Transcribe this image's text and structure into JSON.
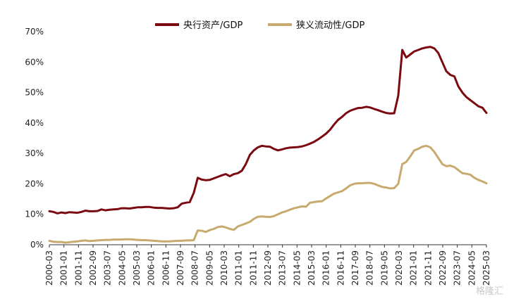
{
  "chart_data": {
    "type": "line",
    "title": "",
    "xlabel": "",
    "ylabel": "",
    "ylim": [
      0,
      70
    ],
    "yticks": [
      "0%",
      "10%",
      "20%",
      "30%",
      "40%",
      "50%",
      "60%",
      "70%"
    ],
    "xticks": [
      "2000-03",
      "2001-01",
      "2001-11",
      "2002-09",
      "2003-07",
      "2004-05",
      "2005-03",
      "2006-01",
      "2006-11",
      "2007-09",
      "2008-07",
      "2009-05",
      "2010-03",
      "2011-01",
      "2011-11",
      "2012-09",
      "2013-07",
      "2014-05",
      "2015-03",
      "2016-01",
      "2016-11",
      "2017-09",
      "2018-07",
      "2019-05",
      "2020-03",
      "2021-01",
      "2021-11",
      "2022-09",
      "2023-07",
      "2024-05",
      "2025-03"
    ],
    "grid": false,
    "legend_position": "top",
    "series": [
      {
        "name": "央行资产/GDP",
        "color": "#7a0a10",
        "points": [
          [
            0,
            11.0
          ],
          [
            1,
            10.8
          ],
          [
            2,
            10.3
          ],
          [
            3,
            10.6
          ],
          [
            4,
            10.4
          ],
          [
            5,
            10.7
          ],
          [
            6,
            10.6
          ],
          [
            7,
            10.5
          ],
          [
            8,
            10.8
          ],
          [
            9,
            11.2
          ],
          [
            10,
            11.0
          ],
          [
            11,
            11.0
          ],
          [
            12,
            11.1
          ],
          [
            13,
            11.6
          ],
          [
            14,
            11.3
          ],
          [
            15,
            11.5
          ],
          [
            16,
            11.6
          ],
          [
            17,
            11.7
          ],
          [
            18,
            12.0
          ],
          [
            19,
            12.0
          ],
          [
            20,
            11.9
          ],
          [
            21,
            12.1
          ],
          [
            22,
            12.3
          ],
          [
            23,
            12.3
          ],
          [
            24,
            12.4
          ],
          [
            25,
            12.4
          ],
          [
            26,
            12.2
          ],
          [
            27,
            12.1
          ],
          [
            28,
            12.1
          ],
          [
            29,
            12.0
          ],
          [
            30,
            11.9
          ],
          [
            31,
            12.0
          ],
          [
            32,
            12.3
          ],
          [
            33,
            13.5
          ],
          [
            34,
            13.8
          ],
          [
            35,
            14.0
          ],
          [
            36,
            17.0
          ],
          [
            37,
            22.0
          ],
          [
            38,
            21.4
          ],
          [
            39,
            21.2
          ],
          [
            40,
            21.3
          ],
          [
            41,
            21.8
          ],
          [
            42,
            22.3
          ],
          [
            43,
            22.8
          ],
          [
            44,
            23.2
          ],
          [
            45,
            22.5
          ],
          [
            46,
            23.2
          ],
          [
            47,
            23.5
          ],
          [
            48,
            24.3
          ],
          [
            49,
            26.5
          ],
          [
            50,
            29.5
          ],
          [
            51,
            31.0
          ],
          [
            52,
            32.0
          ],
          [
            53,
            32.5
          ],
          [
            54,
            32.3
          ],
          [
            55,
            32.2
          ],
          [
            56,
            31.5
          ],
          [
            57,
            31.0
          ],
          [
            58,
            31.3
          ],
          [
            59,
            31.7
          ],
          [
            60,
            31.9
          ],
          [
            61,
            32.0
          ],
          [
            62,
            32.1
          ],
          [
            63,
            32.3
          ],
          [
            64,
            32.7
          ],
          [
            65,
            33.2
          ],
          [
            66,
            33.8
          ],
          [
            67,
            34.6
          ],
          [
            68,
            35.5
          ],
          [
            69,
            36.5
          ],
          [
            70,
            37.8
          ],
          [
            71,
            39.5
          ],
          [
            72,
            41.0
          ],
          [
            73,
            42.0
          ],
          [
            74,
            43.2
          ],
          [
            75,
            44.0
          ],
          [
            76,
            44.5
          ],
          [
            77,
            44.9
          ],
          [
            78,
            45.0
          ],
          [
            79,
            45.3
          ],
          [
            80,
            45.1
          ],
          [
            81,
            44.6
          ],
          [
            82,
            44.2
          ],
          [
            83,
            43.7
          ],
          [
            84,
            43.3
          ],
          [
            85,
            43.1
          ],
          [
            86,
            43.2
          ],
          [
            87,
            49.0
          ],
          [
            88,
            64.0
          ],
          [
            89,
            61.5
          ],
          [
            90,
            62.5
          ],
          [
            91,
            63.5
          ],
          [
            92,
            64.0
          ],
          [
            93,
            64.5
          ],
          [
            94,
            64.8
          ],
          [
            95,
            65.0
          ],
          [
            96,
            64.5
          ],
          [
            97,
            63.0
          ],
          [
            98,
            60.0
          ],
          [
            99,
            57.0
          ],
          [
            100,
            55.8
          ],
          [
            101,
            55.3
          ],
          [
            102,
            52.0
          ],
          [
            103,
            50.0
          ],
          [
            104,
            48.5
          ],
          [
            105,
            47.5
          ],
          [
            106,
            46.5
          ],
          [
            107,
            45.5
          ],
          [
            108,
            45.0
          ],
          [
            109,
            43.3
          ]
        ]
      },
      {
        "name": "狭义流动性/GDP",
        "color": "#c8aa6e",
        "points": [
          [
            0,
            1.3
          ],
          [
            1,
            1.0
          ],
          [
            2,
            0.9
          ],
          [
            3,
            0.9
          ],
          [
            4,
            0.7
          ],
          [
            5,
            0.8
          ],
          [
            6,
            1.0
          ],
          [
            7,
            1.1
          ],
          [
            8,
            1.3
          ],
          [
            9,
            1.4
          ],
          [
            10,
            1.2
          ],
          [
            11,
            1.3
          ],
          [
            12,
            1.4
          ],
          [
            13,
            1.5
          ],
          [
            14,
            1.6
          ],
          [
            15,
            1.6
          ],
          [
            16,
            1.7
          ],
          [
            17,
            1.7
          ],
          [
            18,
            1.7
          ],
          [
            19,
            1.8
          ],
          [
            20,
            1.8
          ],
          [
            21,
            1.7
          ],
          [
            22,
            1.6
          ],
          [
            23,
            1.5
          ],
          [
            24,
            1.5
          ],
          [
            25,
            1.4
          ],
          [
            26,
            1.3
          ],
          [
            27,
            1.2
          ],
          [
            28,
            1.1
          ],
          [
            29,
            1.1
          ],
          [
            30,
            1.1
          ],
          [
            31,
            1.2
          ],
          [
            32,
            1.3
          ],
          [
            33,
            1.3
          ],
          [
            34,
            1.4
          ],
          [
            35,
            1.4
          ],
          [
            36,
            1.5
          ],
          [
            37,
            4.7
          ],
          [
            38,
            4.6
          ],
          [
            39,
            4.2
          ],
          [
            40,
            4.8
          ],
          [
            41,
            5.2
          ],
          [
            42,
            5.8
          ],
          [
            43,
            6.0
          ],
          [
            44,
            5.7
          ],
          [
            45,
            5.2
          ],
          [
            46,
            4.9
          ],
          [
            47,
            6.0
          ],
          [
            48,
            6.5
          ],
          [
            49,
            7.0
          ],
          [
            50,
            7.5
          ],
          [
            51,
            8.5
          ],
          [
            52,
            9.2
          ],
          [
            53,
            9.3
          ],
          [
            54,
            9.2
          ],
          [
            55,
            9.1
          ],
          [
            56,
            9.4
          ],
          [
            57,
            10.0
          ],
          [
            58,
            10.6
          ],
          [
            59,
            11.0
          ],
          [
            60,
            11.5
          ],
          [
            61,
            12.0
          ],
          [
            62,
            12.3
          ],
          [
            63,
            12.6
          ],
          [
            64,
            12.5
          ],
          [
            65,
            13.8
          ],
          [
            66,
            14.0
          ],
          [
            67,
            14.2
          ],
          [
            68,
            14.3
          ],
          [
            69,
            15.2
          ],
          [
            70,
            16.0
          ],
          [
            71,
            16.8
          ],
          [
            72,
            17.2
          ],
          [
            73,
            17.6
          ],
          [
            74,
            18.5
          ],
          [
            75,
            19.5
          ],
          [
            76,
            20.0
          ],
          [
            77,
            20.2
          ],
          [
            78,
            20.2
          ],
          [
            79,
            20.3
          ],
          [
            80,
            20.3
          ],
          [
            81,
            20.0
          ],
          [
            82,
            19.5
          ],
          [
            83,
            19.0
          ],
          [
            84,
            18.8
          ],
          [
            85,
            18.5
          ],
          [
            86,
            18.6
          ],
          [
            87,
            20.0
          ],
          [
            88,
            26.5
          ],
          [
            89,
            27.2
          ],
          [
            90,
            29.0
          ],
          [
            91,
            31.0
          ],
          [
            92,
            31.5
          ],
          [
            93,
            32.2
          ],
          [
            94,
            32.5
          ],
          [
            95,
            32.0
          ],
          [
            96,
            30.5
          ],
          [
            97,
            28.5
          ],
          [
            98,
            26.5
          ],
          [
            99,
            25.8
          ],
          [
            100,
            26.0
          ],
          [
            101,
            25.5
          ],
          [
            102,
            24.5
          ],
          [
            103,
            23.5
          ],
          [
            104,
            23.3
          ],
          [
            105,
            23.0
          ],
          [
            106,
            22.0
          ],
          [
            107,
            21.3
          ],
          [
            108,
            20.8
          ],
          [
            109,
            20.2
          ]
        ]
      }
    ]
  },
  "watermark": "格隆汇"
}
